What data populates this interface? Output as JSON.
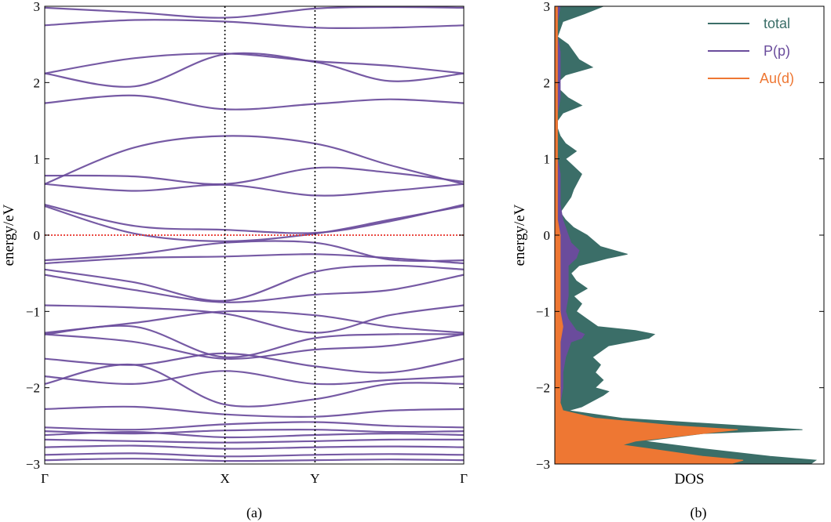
{
  "panels": {
    "a_label": "(a)",
    "b_label": "(b)"
  },
  "colors": {
    "band": "#6a4c9c",
    "fermi": "#e8322a",
    "total": "#3b6e68",
    "pp": "#6a4c9c",
    "aud": "#ee7733"
  },
  "chart_data": [
    {
      "type": "line",
      "panel": "(a)",
      "xlabel": "",
      "ylabel": "energy/eV",
      "ylim": [
        -3,
        3
      ],
      "yticks": [
        "3",
        "2",
        "1",
        "0",
        "−1",
        "−2",
        "−3"
      ],
      "ytick_values": [
        3,
        2,
        1,
        0,
        -1,
        -2,
        -3
      ],
      "kpoints": [
        "Γ",
        "X",
        "Y",
        "Γ"
      ],
      "kpoint_positions": [
        0,
        0.43,
        0.645,
        1
      ],
      "fermi_level": 0,
      "bands": [
        [
          2.98,
          2.92,
          2.85,
          2.97,
          2.99,
          2.98
        ],
        [
          2.75,
          2.82,
          2.8,
          2.72,
          2.72,
          2.75
        ],
        [
          2.12,
          2.32,
          2.38,
          2.28,
          2.22,
          2.12
        ],
        [
          2.12,
          1.95,
          2.37,
          2.27,
          2.02,
          2.12
        ],
        [
          1.73,
          1.83,
          1.65,
          1.72,
          1.78,
          1.73
        ],
        [
          0.67,
          1.15,
          1.3,
          1.2,
          0.92,
          0.67
        ],
        [
          0.78,
          0.77,
          0.67,
          0.88,
          0.82,
          0.7
        ],
        [
          0.67,
          0.58,
          0.66,
          0.52,
          0.58,
          0.67
        ],
        [
          0.4,
          0.12,
          0.07,
          0.03,
          0.18,
          0.4
        ],
        [
          0.38,
          0.02,
          -0.08,
          0.02,
          0.2,
          0.38
        ],
        [
          -0.33,
          -0.25,
          -0.1,
          -0.1,
          -0.32,
          -0.33
        ],
        [
          -0.37,
          -0.3,
          -0.28,
          -0.25,
          -0.3,
          -0.37
        ],
        [
          -0.45,
          -0.62,
          -0.86,
          -0.48,
          -0.4,
          -0.45
        ],
        [
          -0.52,
          -0.72,
          -0.88,
          -0.78,
          -0.72,
          -0.52
        ],
        [
          -0.92,
          -0.95,
          -1.03,
          -1.28,
          -1.05,
          -0.92
        ],
        [
          -1.28,
          -1.15,
          -1.0,
          -1.05,
          -1.2,
          -1.28
        ],
        [
          -1.3,
          -1.2,
          -1.6,
          -1.35,
          -1.3,
          -1.3
        ],
        [
          -1.3,
          -1.4,
          -1.62,
          -1.5,
          -1.45,
          -1.3
        ],
        [
          -1.62,
          -1.7,
          -1.55,
          -1.72,
          -1.8,
          -1.62
        ],
        [
          -1.85,
          -1.95,
          -1.78,
          -1.95,
          -1.9,
          -1.85
        ],
        [
          -1.95,
          -1.7,
          -2.22,
          -2.15,
          -1.95,
          -1.95
        ],
        [
          -2.28,
          -2.25,
          -2.35,
          -2.38,
          -2.3,
          -2.28
        ],
        [
          -2.52,
          -2.55,
          -2.48,
          -2.45,
          -2.5,
          -2.52
        ],
        [
          -2.57,
          -2.6,
          -2.56,
          -2.55,
          -2.58,
          -2.57
        ],
        [
          -2.62,
          -2.58,
          -2.65,
          -2.62,
          -2.6,
          -2.62
        ],
        [
          -2.68,
          -2.7,
          -2.72,
          -2.7,
          -2.68,
          -2.68
        ],
        [
          -2.78,
          -2.76,
          -2.8,
          -2.78,
          -2.77,
          -2.78
        ],
        [
          -2.88,
          -2.86,
          -2.9,
          -2.88,
          -2.87,
          -2.88
        ],
        [
          -2.95,
          -2.93,
          -2.96,
          -2.95,
          -2.94,
          -2.95
        ]
      ]
    },
    {
      "type": "area",
      "panel": "(b)",
      "xlabel": "DOS",
      "ylabel": "energy/eV",
      "ylim": [
        -3,
        3
      ],
      "yticks": [
        "3",
        "2",
        "1",
        "0",
        "−1",
        "−2",
        "−3"
      ],
      "ytick_values": [
        3,
        2,
        1,
        0,
        -1,
        -2,
        -3
      ],
      "legend_position": "top-right",
      "series": [
        {
          "name": "total",
          "energy": [
            -3.0,
            -2.95,
            -2.9,
            -2.8,
            -2.7,
            -2.6,
            -2.55,
            -2.5,
            -2.4,
            -2.3,
            -2.25,
            -2.1,
            -2.05,
            -2.0,
            -1.9,
            -1.8,
            -1.7,
            -1.6,
            -1.5,
            -1.45,
            -1.35,
            -1.3,
            -1.25,
            -1.2,
            -1.1,
            -1.0,
            -0.9,
            -0.8,
            -0.7,
            -0.6,
            -0.5,
            -0.4,
            -0.3,
            -0.25,
            -0.15,
            0.0,
            0.1,
            0.2,
            0.3,
            0.4,
            0.5,
            0.6,
            0.8,
            0.9,
            1.0,
            1.1,
            1.2,
            1.3,
            1.4,
            1.5,
            1.6,
            1.7,
            1.8,
            1.9,
            2.0,
            2.1,
            2.2,
            2.3,
            2.5,
            2.6,
            2.8,
            2.9,
            3.0
          ],
          "values": [
            0.95,
            0.97,
            0.8,
            0.55,
            0.33,
            0.55,
            0.92,
            0.7,
            0.25,
            0.05,
            0.1,
            0.18,
            0.2,
            0.15,
            0.18,
            0.15,
            0.17,
            0.14,
            0.18,
            0.2,
            0.35,
            0.37,
            0.3,
            0.16,
            0.12,
            0.08,
            0.1,
            0.07,
            0.12,
            0.08,
            0.06,
            0.09,
            0.2,
            0.27,
            0.17,
            0.12,
            0.07,
            0.04,
            0.02,
            0.04,
            0.06,
            0.07,
            0.1,
            0.07,
            0.04,
            0.08,
            0.04,
            0.02,
            0.01,
            0.01,
            0.03,
            0.1,
            0.05,
            0.02,
            0.01,
            0.04,
            0.14,
            0.09,
            0.05,
            0.01,
            0.03,
            0.11,
            0.18
          ]
        },
        {
          "name": "P(p)",
          "energy": [
            -3.0,
            -2.9,
            -2.8,
            -2.7,
            -2.6,
            -2.5,
            -2.4,
            -2.3,
            -2.2,
            -2.0,
            -1.8,
            -1.6,
            -1.4,
            -1.35,
            -1.3,
            -1.25,
            -1.1,
            -1.0,
            -0.8,
            -0.6,
            -0.4,
            -0.3,
            -0.2,
            -0.1,
            0.0,
            0.2,
            0.4,
            0.6,
            0.8,
            1.0,
            1.2,
            1.4,
            1.6,
            1.8,
            2.0,
            2.2,
            2.4,
            2.6,
            2.8,
            3.0
          ],
          "values": [
            0.03,
            0.03,
            0.03,
            0.03,
            0.02,
            0.02,
            0.02,
            0.02,
            0.02,
            0.03,
            0.03,
            0.04,
            0.06,
            0.1,
            0.11,
            0.08,
            0.05,
            0.04,
            0.05,
            0.05,
            0.05,
            0.08,
            0.09,
            0.06,
            0.05,
            0.03,
            0.02,
            0.02,
            0.02,
            0.01,
            0.01,
            0.01,
            0.01,
            0.02,
            0.02,
            0.02,
            0.02,
            0.01,
            0.01,
            0.02
          ]
        },
        {
          "name": "Au(d)",
          "energy": [
            -3.0,
            -2.95,
            -2.9,
            -2.8,
            -2.75,
            -2.7,
            -2.6,
            -2.55,
            -2.5,
            -2.4,
            -2.3,
            -2.2,
            -2.0,
            -1.8,
            -1.6,
            -1.4,
            -1.2,
            -1.0,
            -0.8,
            -0.6,
            -0.4,
            -0.2,
            0.0,
            0.2,
            0.4,
            0.6,
            0.8,
            1.0,
            1.2,
            1.4,
            1.6,
            1.8,
            2.0,
            2.2,
            2.4,
            2.6,
            2.8,
            3.0
          ],
          "values": [
            0.65,
            0.7,
            0.55,
            0.35,
            0.25,
            0.3,
            0.55,
            0.68,
            0.45,
            0.15,
            0.03,
            0.02,
            0.02,
            0.02,
            0.02,
            0.02,
            0.03,
            0.02,
            0.02,
            0.02,
            0.02,
            0.02,
            0.02,
            0.01,
            0.01,
            0.01,
            0.01,
            0.01,
            0.01,
            0.01,
            0.01,
            0.01,
            0.01,
            0.01,
            0.01,
            0.01,
            0.01,
            0.01
          ]
        }
      ]
    }
  ]
}
